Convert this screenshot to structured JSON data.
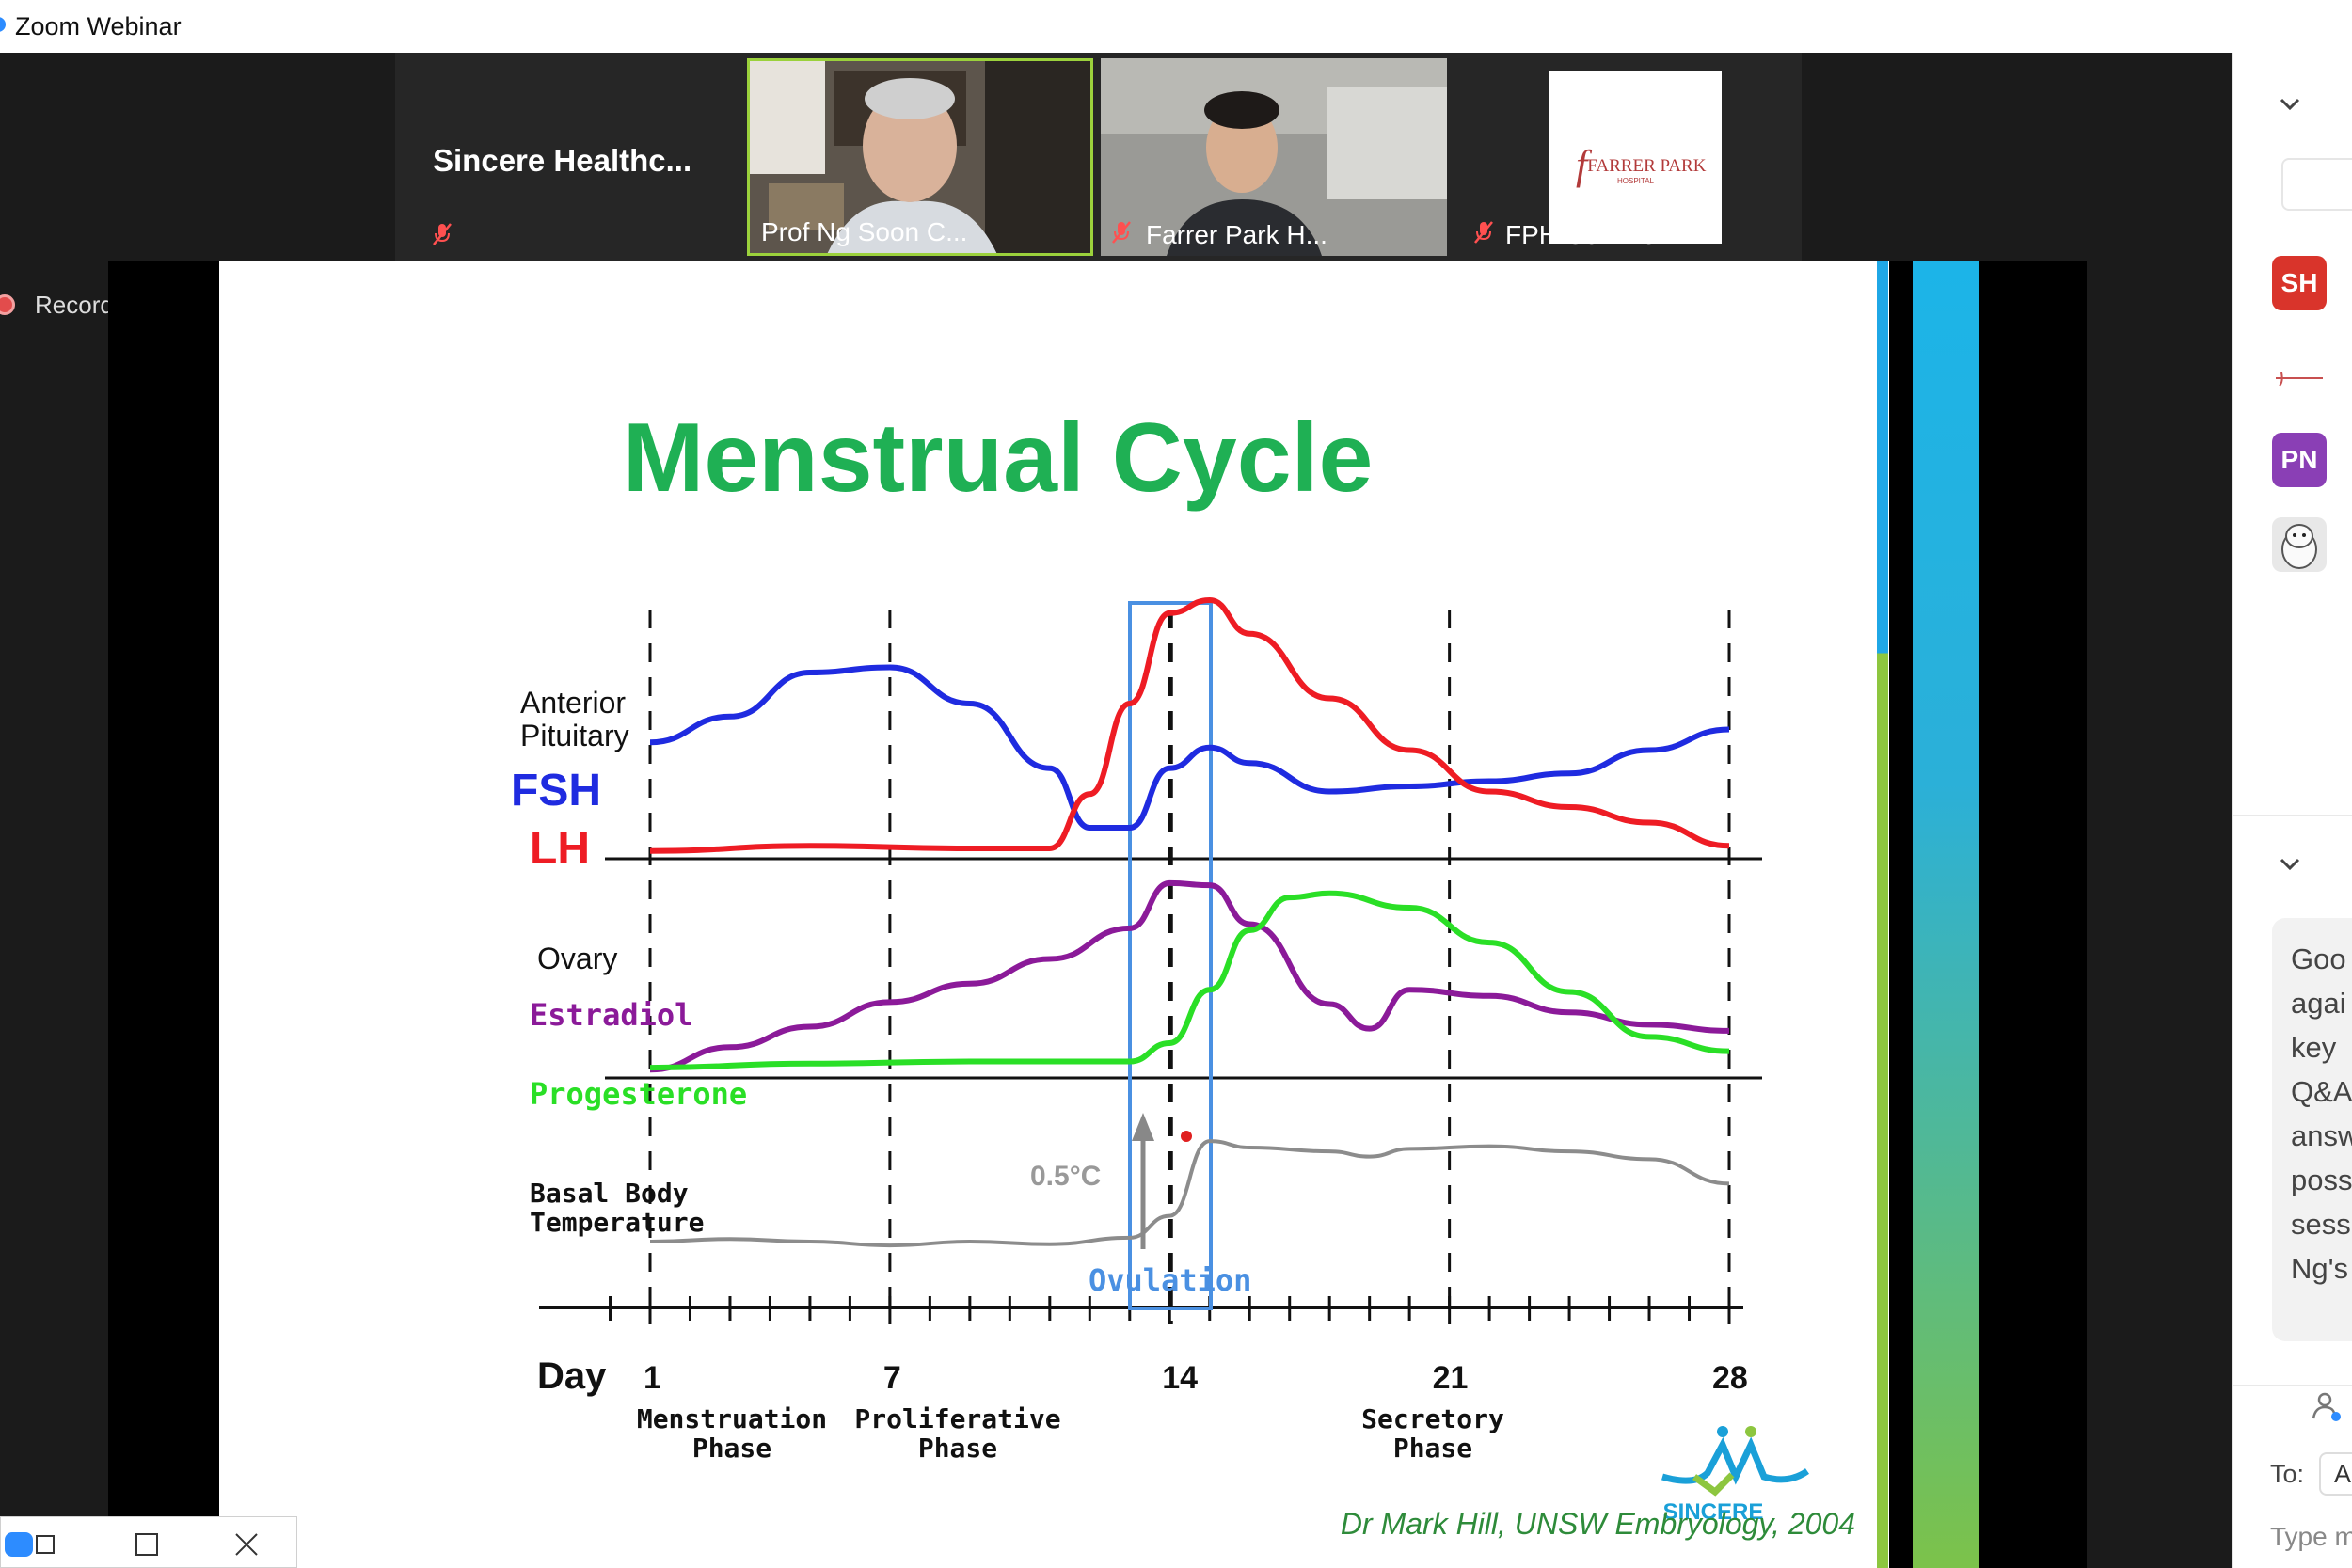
{
  "window": {
    "title": "Zoom Webinar"
  },
  "participants": {
    "text_tile": "Sincere  Healthc...",
    "video1_name": "Prof Ng Soon C...",
    "video2_name": "Farrer Park H...",
    "logo_tile_name": "FPH Commun...",
    "logo_text": "FARRER PARK",
    "logo_sub": "HOSPITAL"
  },
  "recording": {
    "label": "Recording"
  },
  "slide": {
    "title": "Menstrual Cycle",
    "credit": "Dr Mark Hill, UNSW Embryology, 2004",
    "brand": "SINCERE"
  },
  "chart_data": {
    "type": "line",
    "x_label": "Day",
    "x_ticks": [
      "1",
      "7",
      "14",
      "21",
      "28"
    ],
    "phases": [
      "Menstruation\nPhase",
      "Proliferative\nPhase",
      "Secretory\nPhase"
    ],
    "ovulation_label": "Ovulation",
    "temperature_annotation": "0.5°C",
    "groups": [
      {
        "label": "Anterior\nPituitary",
        "series": [
          {
            "name": "FSH",
            "color": "#1f2be0",
            "values": [
              [
                0,
                0.45
              ],
              [
                2,
                0.55
              ],
              [
                4,
                0.72
              ],
              [
                6,
                0.74
              ],
              [
                8,
                0.6
              ],
              [
                10,
                0.35
              ],
              [
                11,
                0.12
              ],
              [
                12,
                0.12
              ],
              [
                13,
                0.35
              ],
              [
                14,
                0.43
              ],
              [
                15,
                0.37
              ],
              [
                17,
                0.26
              ],
              [
                19,
                0.28
              ],
              [
                21,
                0.3
              ],
              [
                23,
                0.33
              ],
              [
                25,
                0.42
              ],
              [
                27,
                0.5
              ]
            ]
          },
          {
            "name": "LH",
            "color": "#ee1c24",
            "values": [
              [
                0,
                0.03
              ],
              [
                4,
                0.05
              ],
              [
                8,
                0.04
              ],
              [
                10,
                0.04
              ],
              [
                11,
                0.25
              ],
              [
                12,
                0.6
              ],
              [
                13,
                0.95
              ],
              [
                14,
                1.0
              ],
              [
                15,
                0.87
              ],
              [
                17,
                0.62
              ],
              [
                19,
                0.42
              ],
              [
                21,
                0.26
              ],
              [
                23,
                0.2
              ],
              [
                25,
                0.14
              ],
              [
                27,
                0.05
              ]
            ]
          }
        ]
      },
      {
        "label": "Ovary",
        "series": [
          {
            "name": "Estradiol",
            "color": "#8b1a99",
            "values": [
              [
                0,
                0.04
              ],
              [
                2,
                0.15
              ],
              [
                4,
                0.25
              ],
              [
                6,
                0.37
              ],
              [
                8,
                0.46
              ],
              [
                10,
                0.58
              ],
              [
                12,
                0.73
              ],
              [
                13,
                0.95
              ],
              [
                14,
                0.94
              ],
              [
                15,
                0.75
              ],
              [
                17,
                0.36
              ],
              [
                18,
                0.24
              ],
              [
                19,
                0.43
              ],
              [
                21,
                0.4
              ],
              [
                23,
                0.32
              ],
              [
                25,
                0.26
              ],
              [
                27,
                0.23
              ]
            ]
          },
          {
            "name": "Progesterone",
            "color": "#2adf26",
            "values": [
              [
                0,
                0.05
              ],
              [
                4,
                0.07
              ],
              [
                8,
                0.08
              ],
              [
                12,
                0.08
              ],
              [
                13,
                0.17
              ],
              [
                14,
                0.43
              ],
              [
                15,
                0.72
              ],
              [
                16,
                0.88
              ],
              [
                17,
                0.9
              ],
              [
                19,
                0.83
              ],
              [
                21,
                0.66
              ],
              [
                23,
                0.42
              ],
              [
                25,
                0.2
              ],
              [
                27,
                0.13
              ]
            ]
          }
        ]
      },
      {
        "label": "Basal Body\nTemperature",
        "series": [
          {
            "name": "Temperature",
            "color": "#8c8c8c",
            "values": [
              [
                0,
                0.0
              ],
              [
                2,
                0.02
              ],
              [
                4,
                0.0
              ],
              [
                6,
                -0.03
              ],
              [
                8,
                0.0
              ],
              [
                10,
                -0.02
              ],
              [
                12,
                0.03
              ],
              [
                13,
                0.2
              ],
              [
                14,
                0.78
              ],
              [
                15,
                0.73
              ],
              [
                17,
                0.7
              ],
              [
                18,
                0.66
              ],
              [
                19,
                0.72
              ],
              [
                21,
                0.74
              ],
              [
                23,
                0.7
              ],
              [
                25,
                0.64
              ],
              [
                27,
                0.45
              ]
            ]
          }
        ]
      }
    ]
  },
  "right_panel": {
    "avatars": [
      "SH",
      "PN"
    ],
    "chat_lines": [
      "Goo",
      "agai",
      "key",
      "Q&A",
      "answ",
      "poss",
      "sess",
      "Ng's"
    ],
    "to_label": "To:",
    "to_value": "A",
    "input_placeholder": "Type m"
  }
}
